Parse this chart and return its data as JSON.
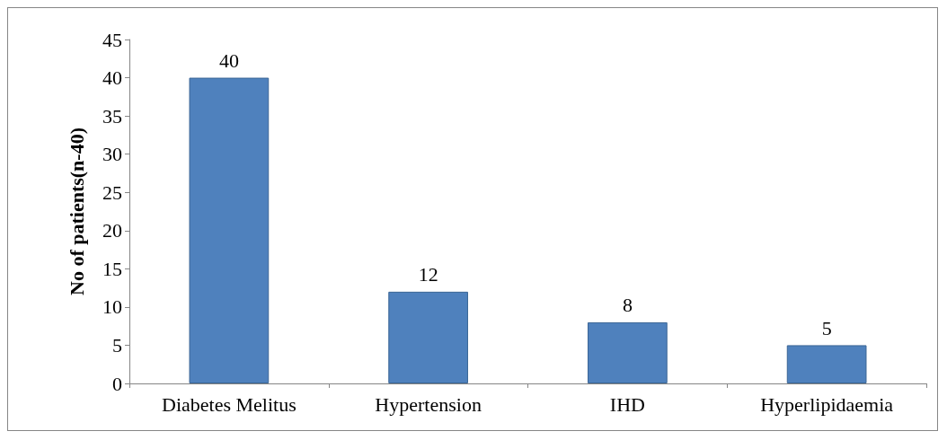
{
  "chart_data": {
    "type": "bar",
    "ylabel": "No of patients(n-40)",
    "categories": [
      "Diabetes Melitus",
      "Hypertension",
      "IHD",
      "Hyperlipidaemia"
    ],
    "values": [
      40,
      12,
      8,
      5
    ],
    "color": "#4f81bd",
    "ylim": [
      0,
      45
    ],
    "yticks": [
      0,
      5,
      10,
      15,
      20,
      25,
      30,
      35,
      40,
      45
    ],
    "grid": false,
    "data_labels": true
  }
}
